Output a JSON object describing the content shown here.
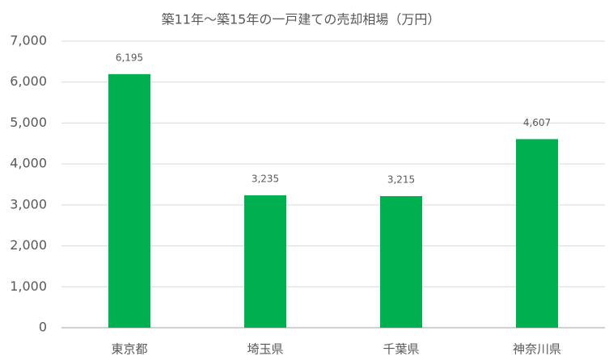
{
  "chart_data": {
    "type": "bar",
    "title": "築11年～築15年の一戸建ての売却相場（万円）",
    "categories": [
      "東京都",
      "埼玉県",
      "千葉県",
      "神奈川県"
    ],
    "values": [
      6195,
      3235,
      3215,
      4607
    ],
    "value_labels": [
      "6,195",
      "3,235",
      "3,215",
      "4,607"
    ],
    "color": "#00b050",
    "ylim": [
      0,
      7000
    ],
    "yticks": [
      0,
      {
        "value": 1000,
        "label": "1,000"
      },
      {
        "value": 2000,
        "label": "2,000"
      },
      {
        "value": 3000,
        "label": "3,000"
      },
      {
        "value": 4000,
        "label": "4,000"
      },
      {
        "value": 5000,
        "label": "5,000"
      },
      {
        "value": 6000,
        "label": "6,000"
      },
      {
        "value": 7000,
        "label": "7,000"
      }
    ],
    "grid": true
  }
}
